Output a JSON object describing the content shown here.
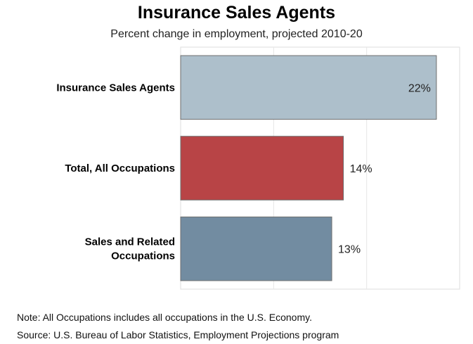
{
  "chart_data": {
    "type": "bar",
    "orientation": "horizontal",
    "title": "Insurance Sales Agents",
    "subtitle": "Percent change in employment, projected 2010-20",
    "categories": [
      [
        "Insurance Sales Agents"
      ],
      [
        "Total, All Occupations"
      ],
      [
        "Sales and Related",
        "Occupations"
      ]
    ],
    "values": [
      22,
      14,
      13
    ],
    "value_labels": [
      "22%",
      "14%",
      "13%"
    ],
    "bar_colors": [
      "#adbfcb",
      "#b84446",
      "#728ca1"
    ],
    "xlim": [
      0,
      24
    ],
    "grid": true
  },
  "notes": {
    "note": "Note: All Occupations includes all occupations in the U.S. Economy.",
    "source": "Source: U.S. Bureau of Labor Statistics, Employment Projections program"
  }
}
